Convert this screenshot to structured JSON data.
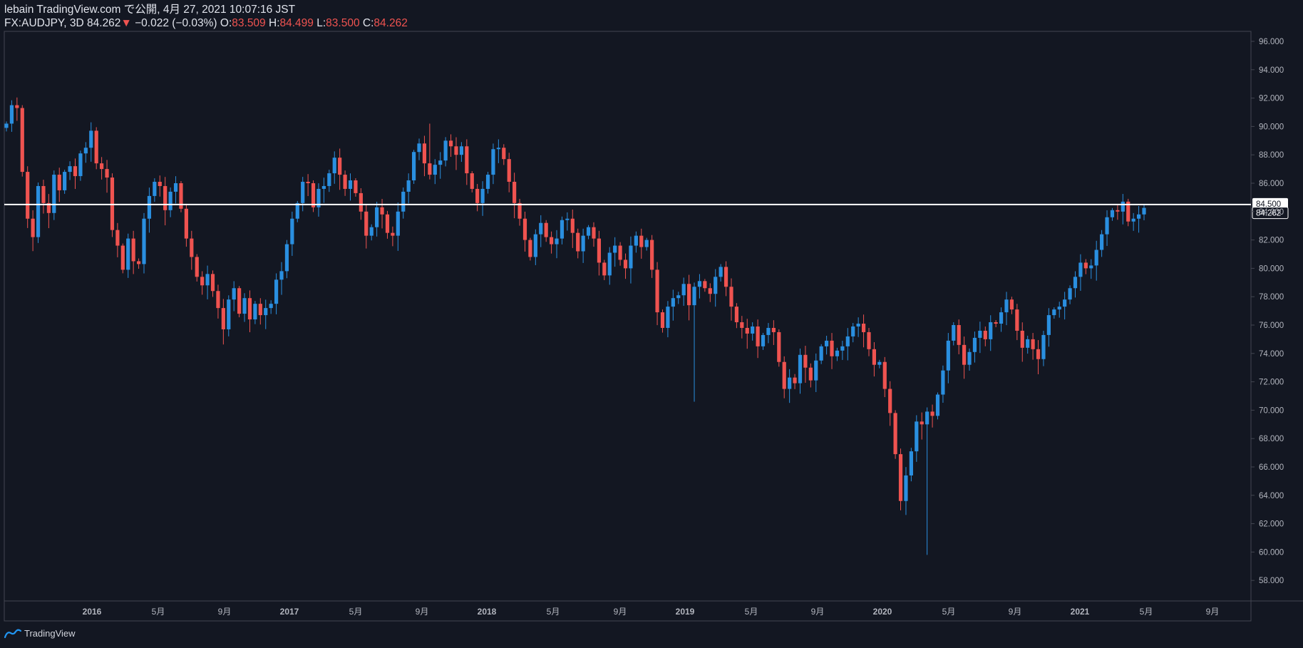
{
  "header": {
    "title": "lebain TradingView.com で公開, 4月 27, 2021 10:07:16 JST",
    "symbol": "FX:AUDJPY, 3D",
    "last": "84.262",
    "arrow": "▼",
    "change": "−0.022 (−0.03%)",
    "o_label": "O:",
    "o_value": "83.509",
    "h_label": "H:",
    "h_value": "84.499",
    "l_label": "L:",
    "l_value": "83.500",
    "c_label": "C:",
    "c_value": "84.262"
  },
  "footer": {
    "brand": "TradingView"
  },
  "colors": {
    "background": "#131722",
    "up": "#2a8fe0",
    "down": "#ef5350",
    "hline": "#ffffff",
    "axis_text": "#b2b5be",
    "grid": "#2a2e39"
  },
  "chart_data": {
    "type": "candlestick",
    "symbol": "FX:AUDJPY",
    "interval": "3D",
    "ylim": [
      56.8,
      97.0
    ],
    "y_ticks": [
      "96.000",
      "94.000",
      "92.000",
      "90.000",
      "88.000",
      "86.000",
      "84.000",
      "82.000",
      "80.000",
      "78.000",
      "76.000",
      "74.000",
      "72.000",
      "70.000",
      "68.000",
      "66.000",
      "64.000",
      "62.000",
      "60.000",
      "58.000"
    ],
    "x_ticks": [
      "2016",
      "5月",
      "9月",
      "2017",
      "5月",
      "9月",
      "2018",
      "5月",
      "9月",
      "2019",
      "5月",
      "9月",
      "2020",
      "5月",
      "9月",
      "2021",
      "5月",
      "9月"
    ],
    "horizontal_line": 84.5,
    "horizontal_line_label": "84.500",
    "last_price_label": "84.262",
    "closes": [
      90.2,
      91.5,
      91.3,
      86.8,
      83.5,
      82.2,
      85.8,
      84.6,
      83.9,
      86.6,
      85.5,
      86.8,
      87.2,
      86.5,
      88.1,
      88.5,
      89.7,
      87.4,
      87.0,
      86.4,
      82.7,
      81.6,
      79.9,
      82.1,
      80.5,
      80.3,
      83.5,
      85.1,
      86.1,
      85.8,
      84.1,
      85.4,
      86.0,
      84.2,
      82.1,
      80.8,
      79.4,
      78.8,
      79.6,
      78.4,
      77.2,
      75.7,
      77.8,
      78.6,
      76.8,
      77.9,
      76.4,
      77.5,
      76.7,
      77.2,
      77.5,
      79.2,
      79.8,
      81.7,
      83.5,
      84.6,
      86.1,
      86.0,
      84.3,
      85.6,
      85.8,
      86.7,
      87.8,
      86.6,
      85.6,
      86.2,
      85.3,
      84.0,
      82.3,
      82.9,
      84.3,
      83.8,
      82.5,
      82.3,
      84.0,
      85.4,
      86.2,
      88.2,
      88.8,
      87.4,
      86.6,
      87.3,
      87.6,
      89.0,
      88.6,
      88.0,
      88.6,
      86.7,
      85.6,
      84.6,
      85.6,
      86.6,
      88.4,
      88.5,
      87.7,
      86.1,
      84.6,
      83.5,
      82.0,
      80.8,
      82.4,
      83.2,
      82.2,
      81.7,
      82.1,
      83.4,
      83.5,
      82.5,
      81.2,
      82.3,
      82.9,
      82.1,
      80.4,
      79.5,
      81.1,
      81.6,
      80.6,
      80.0,
      81.6,
      82.3,
      81.5,
      82.0,
      79.9,
      76.9,
      75.8,
      77.3,
      77.9,
      78.1,
      78.9,
      77.4,
      78.7,
      79.1,
      78.6,
      78.2,
      79.4,
      80.1,
      78.7,
      77.3,
      76.2,
      75.8,
      75.4,
      75.9,
      74.5,
      75.3,
      75.8,
      75.5,
      73.4,
      71.5,
      72.3,
      71.9,
      73.9,
      73.0,
      72.1,
      73.5,
      74.5,
      74.9,
      73.8,
      74.2,
      74.5,
      75.2,
      75.9,
      76.1,
      75.5,
      74.3,
      73.2,
      73.4,
      71.5,
      69.8,
      66.9,
      63.6,
      65.4,
      67.1,
      69.2,
      69.0,
      69.9,
      69.6,
      71.1,
      72.8,
      74.9,
      76.0,
      74.6,
      73.2,
      74.1,
      75.1,
      75.6,
      75.0,
      76.2,
      76.1,
      76.9,
      77.8,
      77.1,
      75.6,
      74.4,
      75.0,
      74.3,
      73.6,
      75.3,
      76.7,
      77.1,
      77.3,
      77.8,
      78.6,
      79.4,
      80.4,
      80.0,
      80.2,
      81.3,
      82.4,
      83.6,
      84.1,
      84.0,
      84.7,
      83.3,
      83.5,
      83.8,
      84.26
    ]
  }
}
